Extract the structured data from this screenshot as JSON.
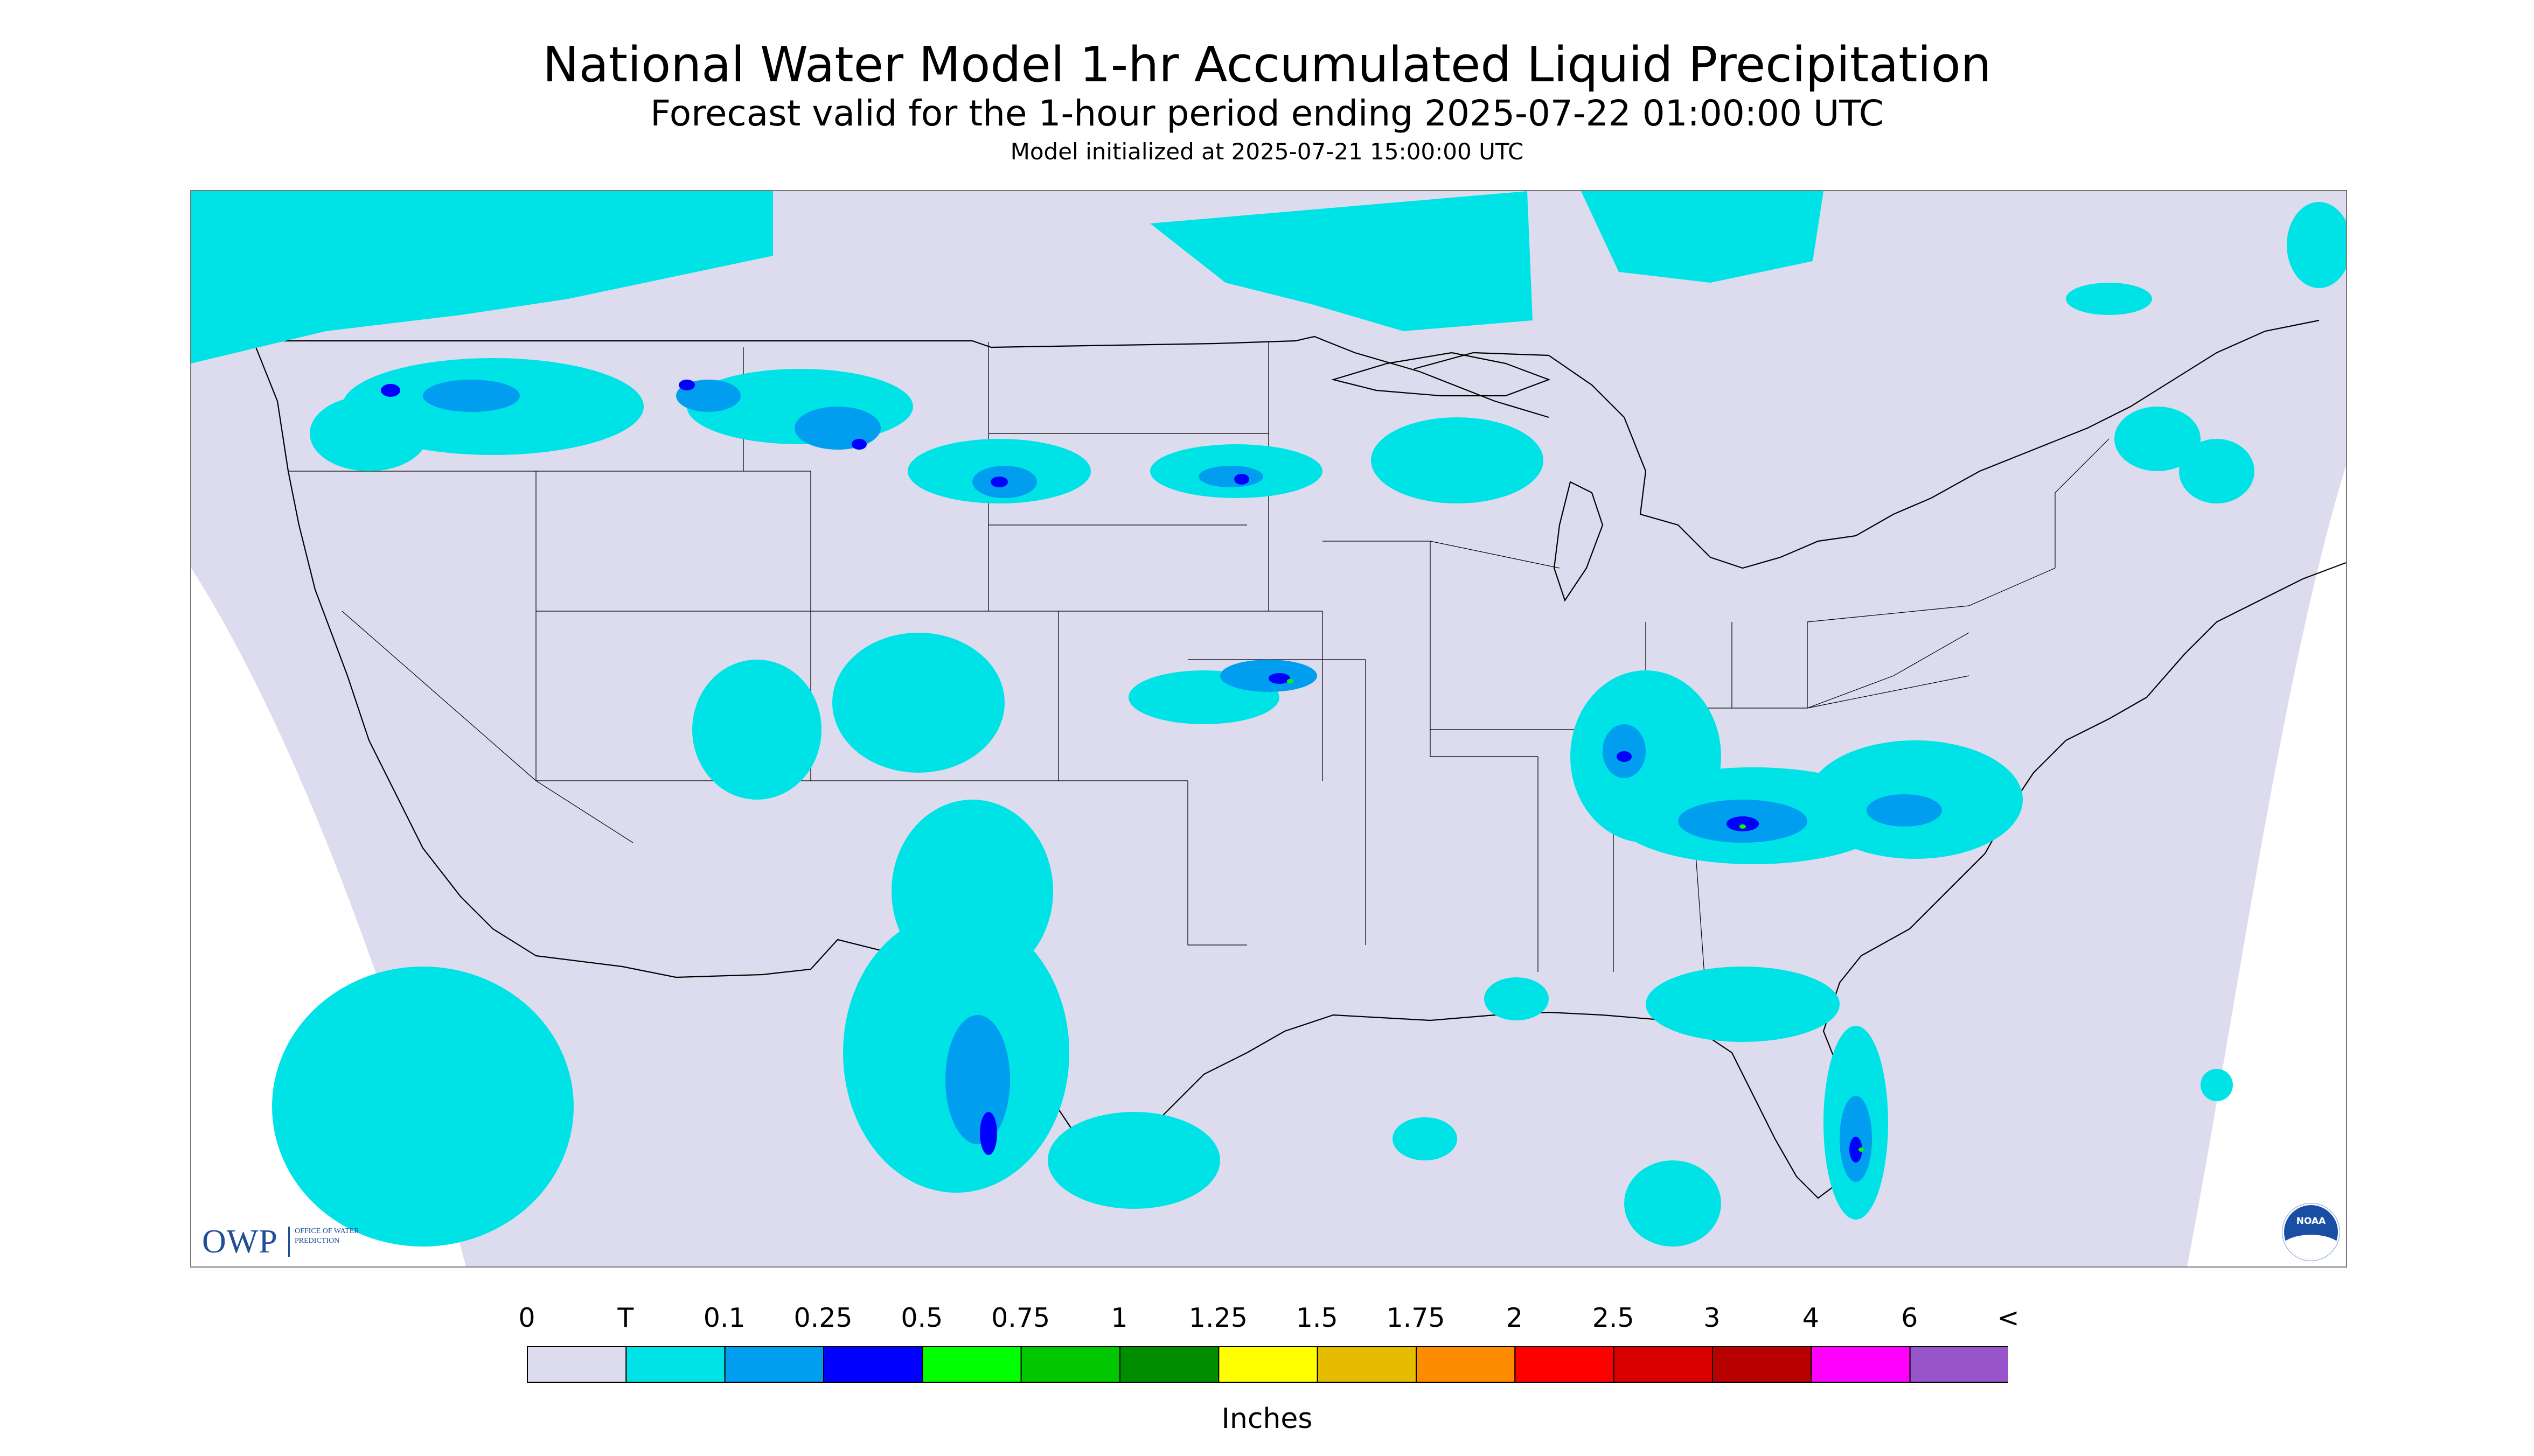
{
  "title": "National Water Model 1-hr Accumulated Liquid Precipitation",
  "subtitle": "Forecast valid for the 1-hour period ending 2025-07-22 01:00:00 UTC",
  "init_line": "Model initialized at 2025-07-21 15:00:00 UTC",
  "logos": {
    "owp_mark": "OWP",
    "owp_subtext": "OFFICE OF WATER PREDICTION",
    "noaa": "NOAA"
  },
  "legend": {
    "units": "Inches",
    "tick_labels": [
      "0",
      "T",
      "0.1",
      "0.25",
      "0.5",
      "0.75",
      "1",
      "1.25",
      "1.5",
      "1.75",
      "2",
      "2.5",
      "3",
      "4",
      "6",
      "<"
    ],
    "colors": [
      "#dcdcee",
      "#00e3e6",
      "#019ef0",
      "#0000ff",
      "#00ff00",
      "#00c700",
      "#008e00",
      "#ffff00",
      "#e6bc00",
      "#ff8c00",
      "#ff0000",
      "#d80000",
      "#b80000",
      "#ff00ff",
      "#9955cc"
    ]
  },
  "map": {
    "colors": {
      "outside_domain": "#ffffff",
      "domain_fill": "#dcdcee",
      "boundaries": "#000000",
      "trace": "#00e3e6",
      "light": "#019ef0",
      "moderate": "#0000ff",
      "heavy": "#00ff00"
    }
  }
}
